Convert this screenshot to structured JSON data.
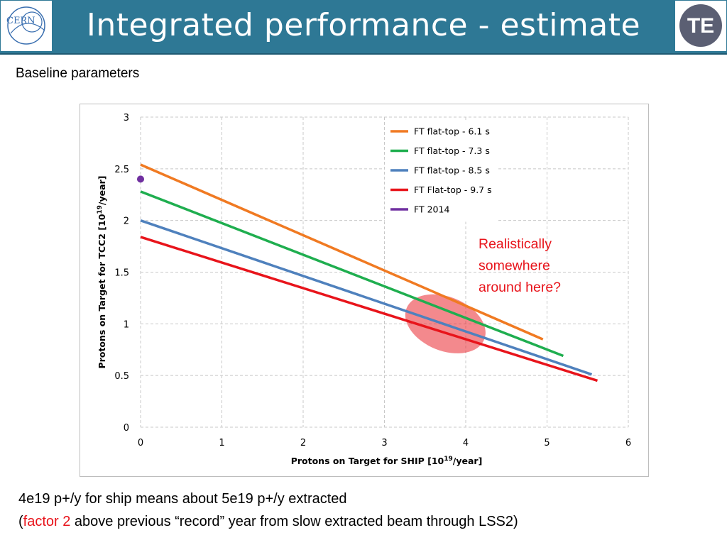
{
  "slide": {
    "title": "Integrated performance - estimate",
    "subtitle": "Baseline parameters",
    "logos": {
      "left": "CERN",
      "right": "TE"
    }
  },
  "notes": {
    "line1": "4e19 p+/y for ship means about 5e19 p+/y extracted",
    "line2_open": "(",
    "line2_highlight": "factor 2",
    "line2_rest": " above previous “record” year from slow extracted beam through LSS2)",
    "highlight_color": "#e8141b"
  },
  "chart_data": {
    "type": "line",
    "xlabel": "Protons on Target for SHIP [10",
    "xlabel_sup": "19",
    "xlabel_tail": "/year]",
    "ylabel": "Protons on Target for TCC2 [10",
    "ylabel_sup": "19",
    "ylabel_tail": "/year]",
    "xlim": [
      0,
      6
    ],
    "ylim": [
      0,
      3
    ],
    "x_ticks": [
      "0",
      "1",
      "2",
      "3",
      "4",
      "5",
      "6"
    ],
    "y_ticks": [
      "0",
      "0.5",
      "1",
      "1.5",
      "2",
      "2.5",
      "3"
    ],
    "grid": true,
    "grid_style": "dashed",
    "legend_position": "top-right",
    "series": [
      {
        "name": "FT flat-top - 6.1 s",
        "color": "#f07a22",
        "x": [
          0,
          4.95
        ],
        "y": [
          2.54,
          0.85
        ]
      },
      {
        "name": "FT flat-top - 7.3 s",
        "color": "#1fae4f",
        "x": [
          0,
          5.2
        ],
        "y": [
          2.28,
          0.69
        ]
      },
      {
        "name": "FT flat-top - 8.5 s",
        "color": "#4f81bd",
        "x": [
          0,
          5.55
        ],
        "y": [
          2.0,
          0.51
        ]
      },
      {
        "name": "FT Flat-top - 9.7 s",
        "color": "#e8141b",
        "x": [
          0,
          5.62
        ],
        "y": [
          1.84,
          0.45
        ]
      },
      {
        "name": "FT 2014",
        "color": "#7030a0",
        "x": [
          0
        ],
        "y": [
          2.4
        ],
        "marker": "point"
      }
    ],
    "annotation": {
      "lines": [
        "Realistically",
        "somewhere",
        "around here?"
      ],
      "color": "#e8141b",
      "highlight_center": [
        3.75,
        1.0
      ],
      "highlight_color": "#e8141b"
    }
  }
}
